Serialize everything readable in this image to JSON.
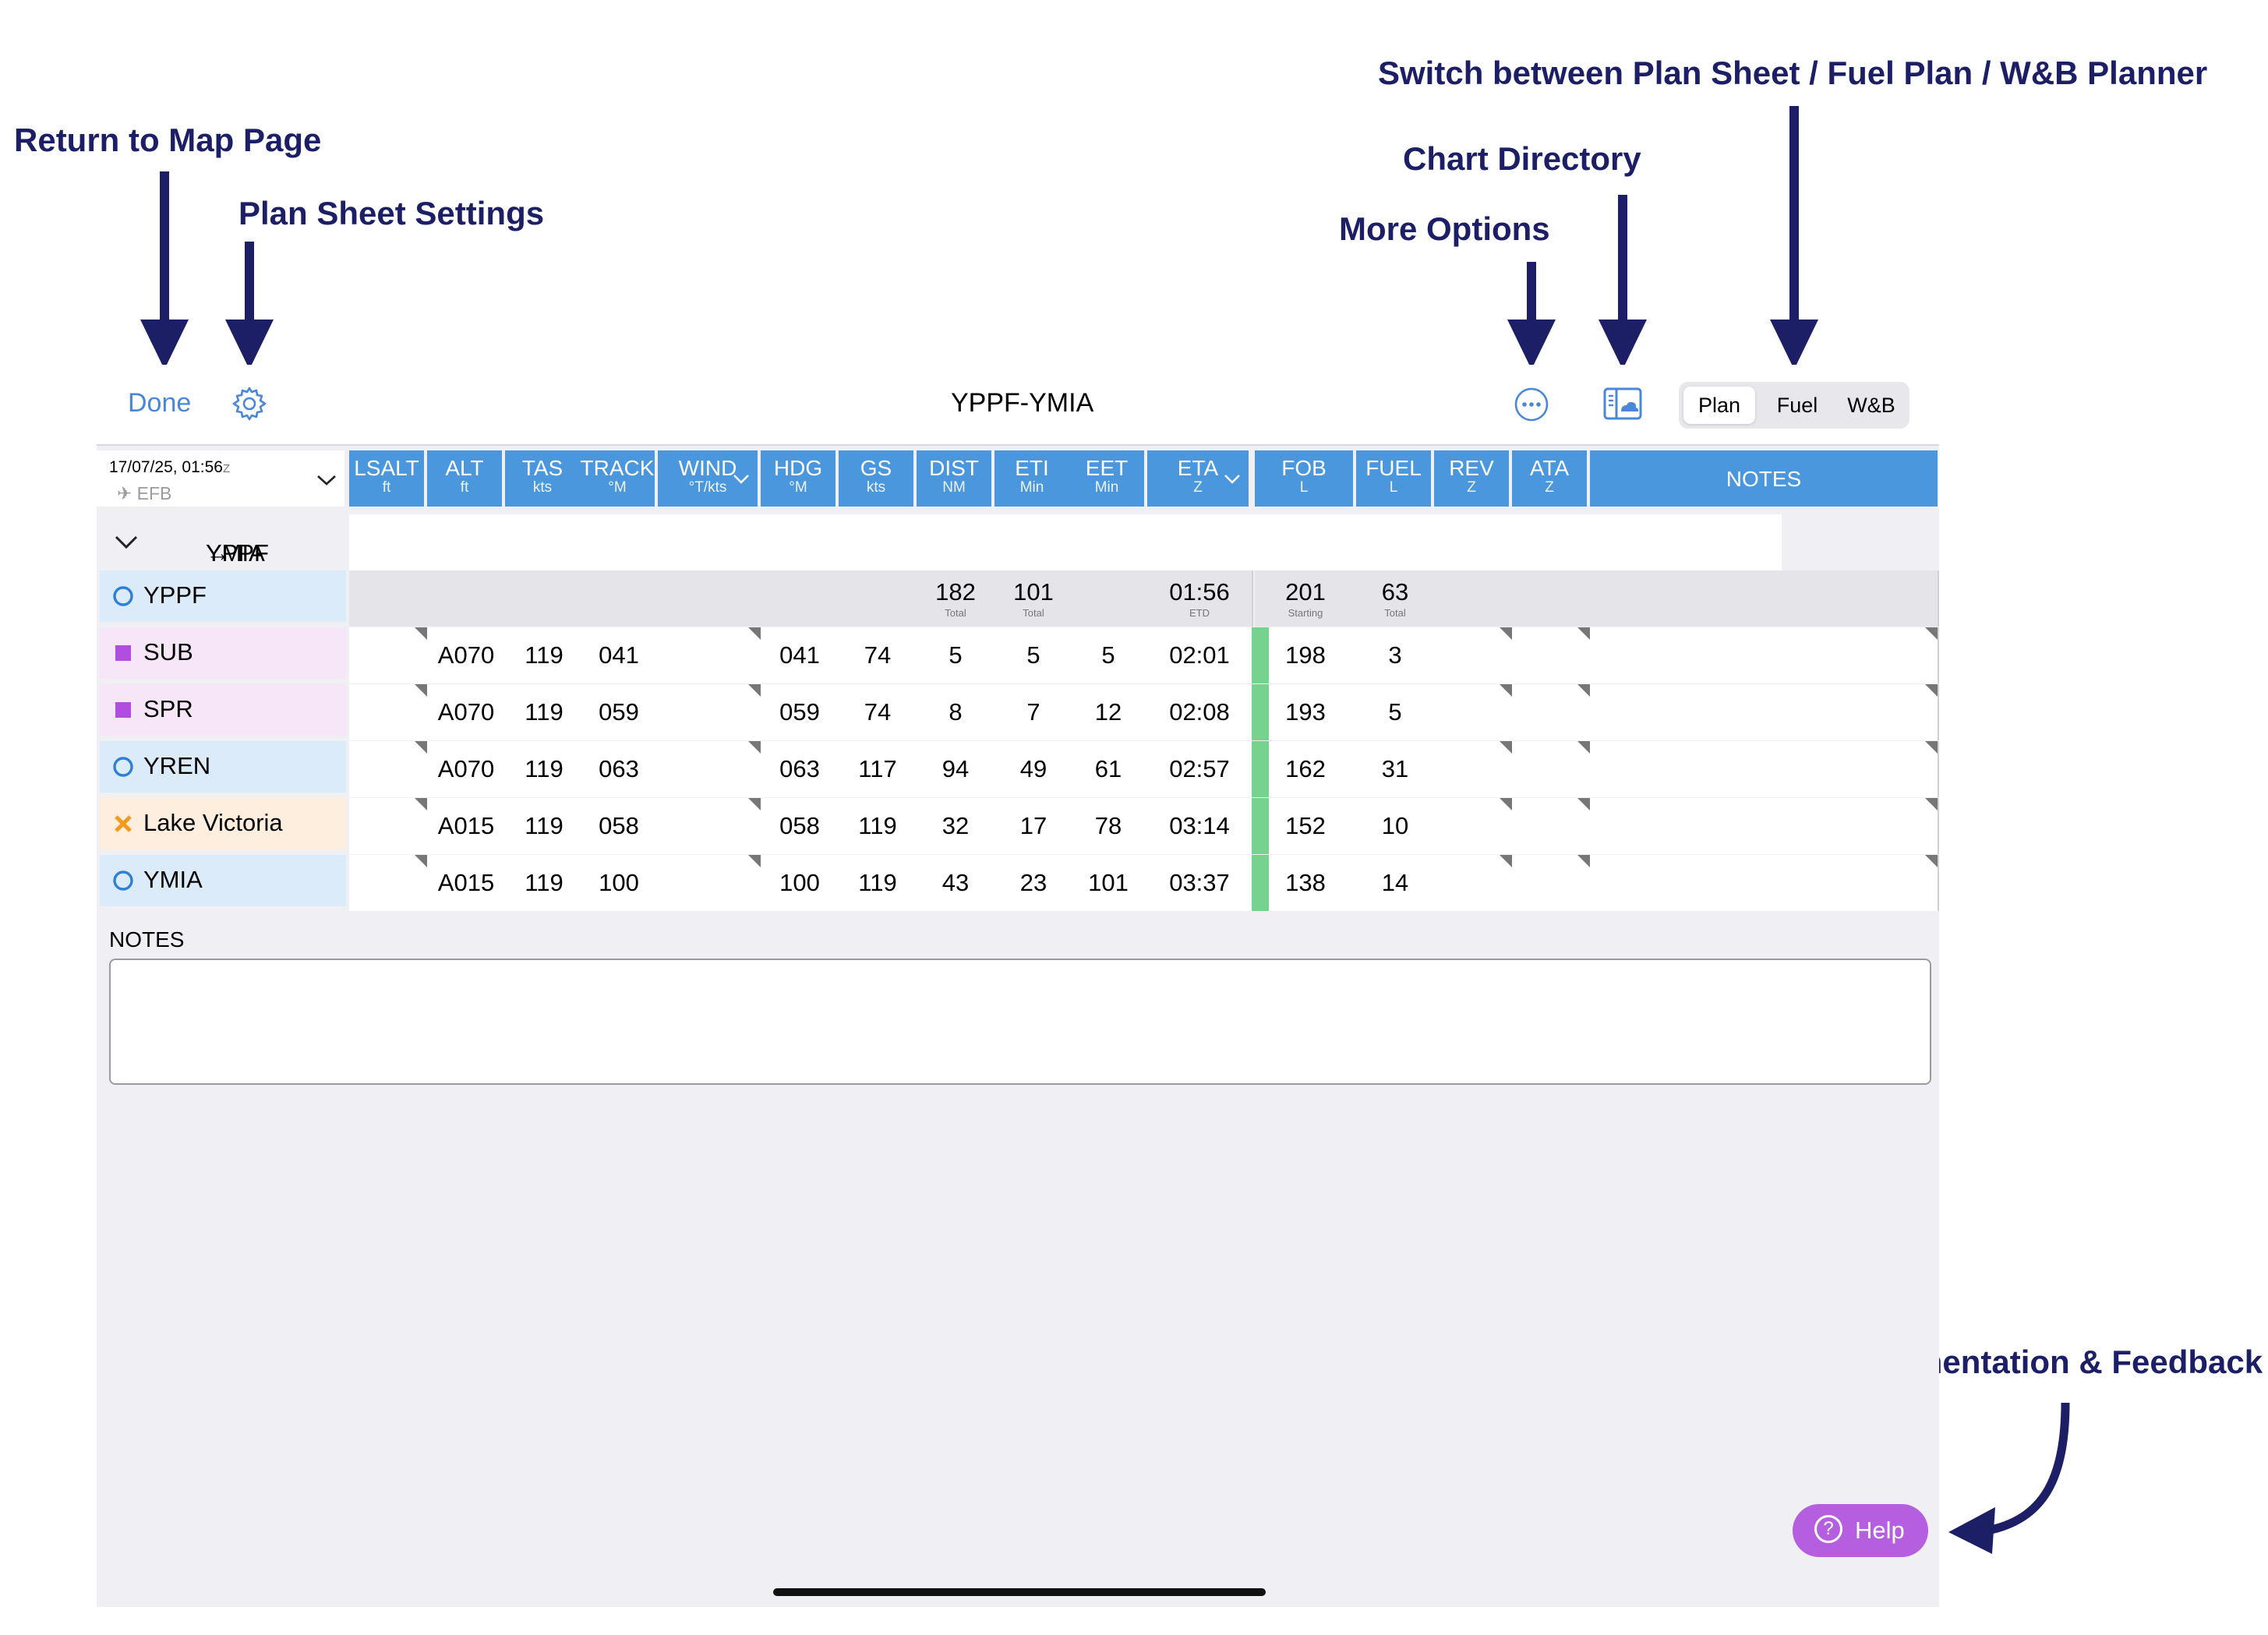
{
  "annotations": {
    "return_to_map": "Return to Map Page",
    "plan_sheet_settings": "Plan Sheet Settings",
    "switch_views": "Switch between Plan Sheet / Fuel Plan / W&B Planner",
    "chart_directory": "Chart Directory",
    "more_options": "More Options",
    "documentation": "Documentation & Feedback"
  },
  "toolbar": {
    "done_label": "Done",
    "title": "YPPF-YMIA",
    "segments": [
      "Plan",
      "Fuel",
      "W&B"
    ],
    "selected_segment": "Plan",
    "icons": [
      "gear-icon",
      "more-options-icon",
      "chart-directory-icon"
    ]
  },
  "header": {
    "date": "17/07/25, 01:56",
    "date_suffix": "Z",
    "source": "EFB",
    "columns": [
      {
        "label": "LSALT",
        "unit": "ft"
      },
      {
        "label": "ALT",
        "unit": "ft"
      },
      {
        "label": "TAS",
        "unit": "kts"
      },
      {
        "label": "TRACK",
        "unit": "°M"
      },
      {
        "label": "WIND",
        "unit": "°T/kts"
      },
      {
        "label": "HDG",
        "unit": "°M"
      },
      {
        "label": "GS",
        "unit": "kts"
      },
      {
        "label": "DIST",
        "unit": "NM"
      },
      {
        "label": "ETI",
        "unit": "Min"
      },
      {
        "label": "EET",
        "unit": "Min"
      },
      {
        "label": "ETA",
        "unit": "Z"
      },
      {
        "label": "FOB",
        "unit": "L"
      },
      {
        "label": "FUEL",
        "unit": "L"
      },
      {
        "label": "REV",
        "unit": "Z"
      },
      {
        "label": "ATA",
        "unit": "Z"
      },
      {
        "label": "NOTES",
        "unit": ""
      }
    ]
  },
  "route": {
    "from": "YPPF",
    "arrow": "→",
    "to": "YMIA"
  },
  "totals": {
    "dist": "182",
    "dist_sub": "Total",
    "eti": "101",
    "eti_sub": "Total",
    "etd": "01:56",
    "etd_sub": "ETD",
    "fob": "201",
    "fob_sub": "Starting",
    "fuel": "63",
    "fuel_sub": "Total"
  },
  "origin": {
    "name": "YPPF",
    "type": "airport"
  },
  "waypoints": [
    {
      "name": "SUB",
      "type": "vfr",
      "alt": "A070",
      "tas": "119",
      "track": "041",
      "hdg": "041",
      "gs": "74",
      "dist": "5",
      "eti": "5",
      "eet": "5",
      "eta": "02:01",
      "fob": "198",
      "fuel": "3"
    },
    {
      "name": "SPR",
      "type": "vfr",
      "alt": "A070",
      "tas": "119",
      "track": "059",
      "hdg": "059",
      "gs": "74",
      "dist": "8",
      "eti": "7",
      "eet": "12",
      "eta": "02:08",
      "fob": "193",
      "fuel": "5"
    },
    {
      "name": "YREN",
      "type": "airport",
      "alt": "A070",
      "tas": "119",
      "track": "063",
      "hdg": "063",
      "gs": "117",
      "dist": "94",
      "eti": "49",
      "eet": "61",
      "eta": "02:57",
      "fob": "162",
      "fuel": "31"
    },
    {
      "name": "Lake Victoria",
      "type": "user",
      "alt": "A015",
      "tas": "119",
      "track": "058",
      "hdg": "058",
      "gs": "119",
      "dist": "32",
      "eti": "17",
      "eet": "78",
      "eta": "03:14",
      "fob": "152",
      "fuel": "10"
    },
    {
      "name": "YMIA",
      "type": "airport",
      "alt": "A015",
      "tas": "119",
      "track": "100",
      "hdg": "100",
      "gs": "119",
      "dist": "43",
      "eti": "23",
      "eet": "101",
      "eta": "03:37",
      "fob": "138",
      "fuel": "14"
    }
  ],
  "notes": {
    "label": "NOTES",
    "value": ""
  },
  "help": {
    "label": "Help"
  },
  "colors": {
    "accent": "#4a97de",
    "link": "#4a87d8",
    "annotation": "#1c1f66",
    "airport_bg": "#dcebfa",
    "airport_mark": "#2f7fd6",
    "vfr_bg": "#f6e6f8",
    "vfr_mark": "#b04ee0",
    "user_bg": "#fdeedd",
    "user_mark": "#f39a1d",
    "fuel_ok": "#76d38e",
    "help_bg": "#b65ee0"
  }
}
